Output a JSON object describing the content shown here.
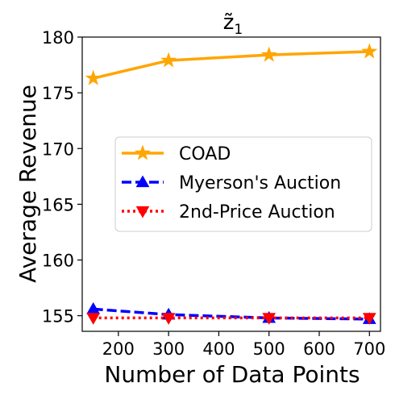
{
  "chart_data": {
    "type": "line",
    "title": "z̃1",
    "title_main": "z̃",
    "title_sub": "1",
    "xlabel": "Number of Data Points",
    "ylabel": "Average Revenue",
    "xlim": [
      128,
      722
    ],
    "ylim": [
      153.6,
      180.0
    ],
    "xticks": [
      200,
      300,
      400,
      500,
      600,
      700
    ],
    "yticks": [
      155,
      160,
      165,
      170,
      175,
      180
    ],
    "x": [
      150,
      300,
      500,
      700
    ],
    "grid": false,
    "legend_position": "center-right",
    "series": [
      {
        "name": "COAD",
        "values": [
          176.3,
          177.9,
          178.4,
          178.7
        ],
        "color": "#FFA500",
        "marker": "star",
        "linestyle": "solid"
      },
      {
        "name": "Myerson's Auction",
        "values": [
          155.6,
          155.1,
          154.8,
          154.7
        ],
        "color": "#0000FF",
        "marker": "triangle-up",
        "linestyle": "dashed"
      },
      {
        "name": "2nd-Price Auction",
        "values": [
          154.8,
          154.8,
          154.8,
          154.8
        ],
        "color": "#FF0000",
        "marker": "triangle-down",
        "linestyle": "dotted"
      }
    ]
  }
}
